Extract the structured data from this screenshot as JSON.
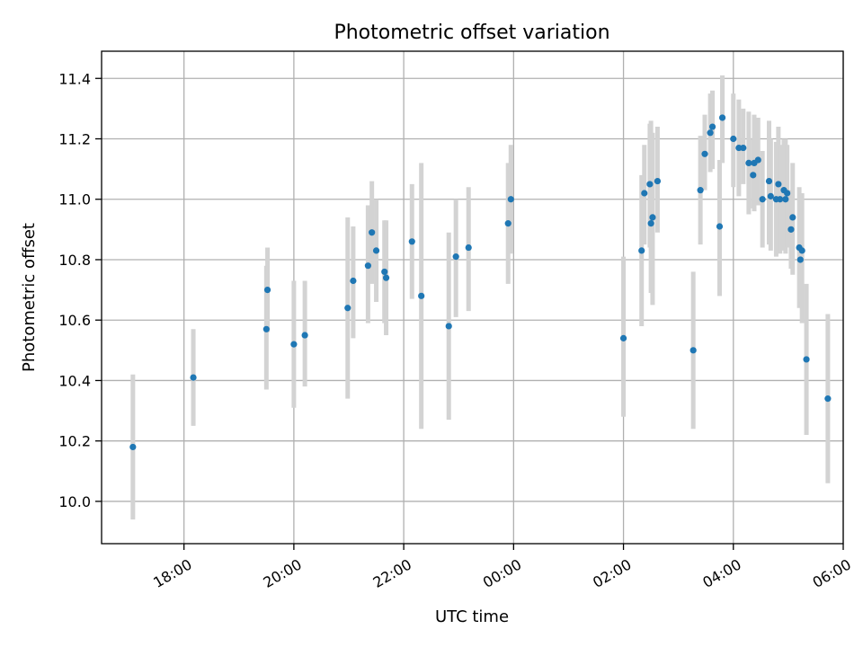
{
  "chart_data": {
    "type": "scatter",
    "title": "Photometric offset variation",
    "xlabel": "UTC time",
    "ylabel": "Photometric offset",
    "x_unit": "hours since 00:00 UTC",
    "xlim": [
      -7.5,
      6.0
    ],
    "ylim": [
      9.86,
      11.49
    ],
    "grid": true,
    "x_ticks": [
      {
        "value": -6,
        "label": "18:00"
      },
      {
        "value": -4,
        "label": "20:00"
      },
      {
        "value": -2,
        "label": "22:00"
      },
      {
        "value": 0,
        "label": "00:00"
      },
      {
        "value": 2,
        "label": "02:00"
      },
      {
        "value": 4,
        "label": "04:00"
      },
      {
        "value": 6,
        "label": "06:00"
      }
    ],
    "y_ticks": [
      {
        "value": 10.0,
        "label": "10.0"
      },
      {
        "value": 10.2,
        "label": "10.2"
      },
      {
        "value": 10.4,
        "label": "10.4"
      },
      {
        "value": 10.6,
        "label": "10.6"
      },
      {
        "value": 10.8,
        "label": "10.8"
      },
      {
        "value": 11.0,
        "label": "11.0"
      },
      {
        "value": 11.2,
        "label": "11.2"
      },
      {
        "value": 11.4,
        "label": "11.4"
      }
    ],
    "points": [
      {
        "x": -6.93,
        "y": 10.18,
        "lo": 9.94,
        "hi": 10.42
      },
      {
        "x": -5.83,
        "y": 10.41,
        "lo": 10.25,
        "hi": 10.57
      },
      {
        "x": -4.5,
        "y": 10.57,
        "lo": 10.37,
        "hi": 10.78
      },
      {
        "x": -4.48,
        "y": 10.7,
        "lo": 10.56,
        "hi": 10.84
      },
      {
        "x": -4.0,
        "y": 10.52,
        "lo": 10.31,
        "hi": 10.73
      },
      {
        "x": -3.8,
        "y": 10.55,
        "lo": 10.38,
        "hi": 10.73
      },
      {
        "x": -3.02,
        "y": 10.64,
        "lo": 10.34,
        "hi": 10.94
      },
      {
        "x": -2.92,
        "y": 10.73,
        "lo": 10.54,
        "hi": 10.91
      },
      {
        "x": -2.65,
        "y": 10.78,
        "lo": 10.59,
        "hi": 10.98
      },
      {
        "x": -2.58,
        "y": 10.89,
        "lo": 10.72,
        "hi": 11.06
      },
      {
        "x": -2.5,
        "y": 10.83,
        "lo": 10.66,
        "hi": 11.0
      },
      {
        "x": -2.35,
        "y": 10.76,
        "lo": 10.59,
        "hi": 10.93
      },
      {
        "x": -2.32,
        "y": 10.74,
        "lo": 10.55,
        "hi": 10.93
      },
      {
        "x": -1.85,
        "y": 10.86,
        "lo": 10.67,
        "hi": 11.05
      },
      {
        "x": -1.68,
        "y": 10.68,
        "lo": 10.24,
        "hi": 11.12
      },
      {
        "x": -1.18,
        "y": 10.58,
        "lo": 10.27,
        "hi": 10.89
      },
      {
        "x": -1.05,
        "y": 10.81,
        "lo": 10.61,
        "hi": 11.0
      },
      {
        "x": -0.82,
        "y": 10.84,
        "lo": 10.63,
        "hi": 11.04
      },
      {
        "x": -0.1,
        "y": 10.92,
        "lo": 10.72,
        "hi": 11.12
      },
      {
        "x": -0.05,
        "y": 11.0,
        "lo": 10.82,
        "hi": 11.18
      },
      {
        "x": 2.0,
        "y": 10.54,
        "lo": 10.28,
        "hi": 10.81
      },
      {
        "x": 2.33,
        "y": 10.83,
        "lo": 10.58,
        "hi": 11.08
      },
      {
        "x": 2.38,
        "y": 11.02,
        "lo": 10.85,
        "hi": 11.18
      },
      {
        "x": 2.48,
        "y": 11.05,
        "lo": 10.84,
        "hi": 11.25
      },
      {
        "x": 2.5,
        "y": 10.92,
        "lo": 10.69,
        "hi": 11.26
      },
      {
        "x": 2.53,
        "y": 10.94,
        "lo": 10.65,
        "hi": 11.22
      },
      {
        "x": 2.62,
        "y": 11.06,
        "lo": 10.89,
        "hi": 11.24
      },
      {
        "x": 3.27,
        "y": 10.5,
        "lo": 10.24,
        "hi": 10.76
      },
      {
        "x": 3.4,
        "y": 11.03,
        "lo": 10.85,
        "hi": 11.21
      },
      {
        "x": 3.48,
        "y": 11.15,
        "lo": 11.03,
        "hi": 11.28
      },
      {
        "x": 3.58,
        "y": 11.22,
        "lo": 11.09,
        "hi": 11.35
      },
      {
        "x": 3.62,
        "y": 11.24,
        "lo": 11.1,
        "hi": 11.36
      },
      {
        "x": 3.75,
        "y": 10.91,
        "lo": 10.68,
        "hi": 11.13
      },
      {
        "x": 3.8,
        "y": 11.27,
        "lo": 11.12,
        "hi": 11.41
      },
      {
        "x": 4.0,
        "y": 11.2,
        "lo": 11.04,
        "hi": 11.35
      },
      {
        "x": 4.1,
        "y": 11.17,
        "lo": 11.01,
        "hi": 11.33
      },
      {
        "x": 4.18,
        "y": 11.17,
        "lo": 11.05,
        "hi": 11.3
      },
      {
        "x": 4.28,
        "y": 11.12,
        "lo": 10.95,
        "hi": 11.29
      },
      {
        "x": 4.36,
        "y": 11.08,
        "lo": 10.97,
        "hi": 11.2
      },
      {
        "x": 4.38,
        "y": 11.12,
        "lo": 10.96,
        "hi": 11.28
      },
      {
        "x": 4.45,
        "y": 11.13,
        "lo": 10.98,
        "hi": 11.27
      },
      {
        "x": 4.53,
        "y": 11.0,
        "lo": 10.84,
        "hi": 11.16
      },
      {
        "x": 4.65,
        "y": 11.06,
        "lo": 10.85,
        "hi": 11.26
      },
      {
        "x": 4.68,
        "y": 11.01,
        "lo": 10.83,
        "hi": 11.2
      },
      {
        "x": 4.78,
        "y": 11.0,
        "lo": 10.81,
        "hi": 11.19
      },
      {
        "x": 4.82,
        "y": 11.05,
        "lo": 10.86,
        "hi": 11.24
      },
      {
        "x": 4.85,
        "y": 11.0,
        "lo": 10.82,
        "hi": 11.18
      },
      {
        "x": 4.92,
        "y": 11.03,
        "lo": 10.83,
        "hi": 11.2
      },
      {
        "x": 4.95,
        "y": 11.0,
        "lo": 10.82,
        "hi": 11.2
      },
      {
        "x": 4.98,
        "y": 11.02,
        "lo": 10.84,
        "hi": 11.18
      },
      {
        "x": 5.05,
        "y": 10.9,
        "lo": 10.77,
        "hi": 11.03
      },
      {
        "x": 5.08,
        "y": 10.94,
        "lo": 10.75,
        "hi": 11.12
      },
      {
        "x": 5.2,
        "y": 10.84,
        "lo": 10.64,
        "hi": 11.04
      },
      {
        "x": 5.25,
        "y": 10.83,
        "lo": 10.59,
        "hi": 11.02
      },
      {
        "x": 5.22,
        "y": 10.8,
        "lo": 10.66,
        "hi": 10.94
      },
      {
        "x": 5.33,
        "y": 10.47,
        "lo": 10.22,
        "hi": 10.72
      },
      {
        "x": 5.72,
        "y": 10.34,
        "lo": 10.06,
        "hi": 10.62
      }
    ]
  }
}
